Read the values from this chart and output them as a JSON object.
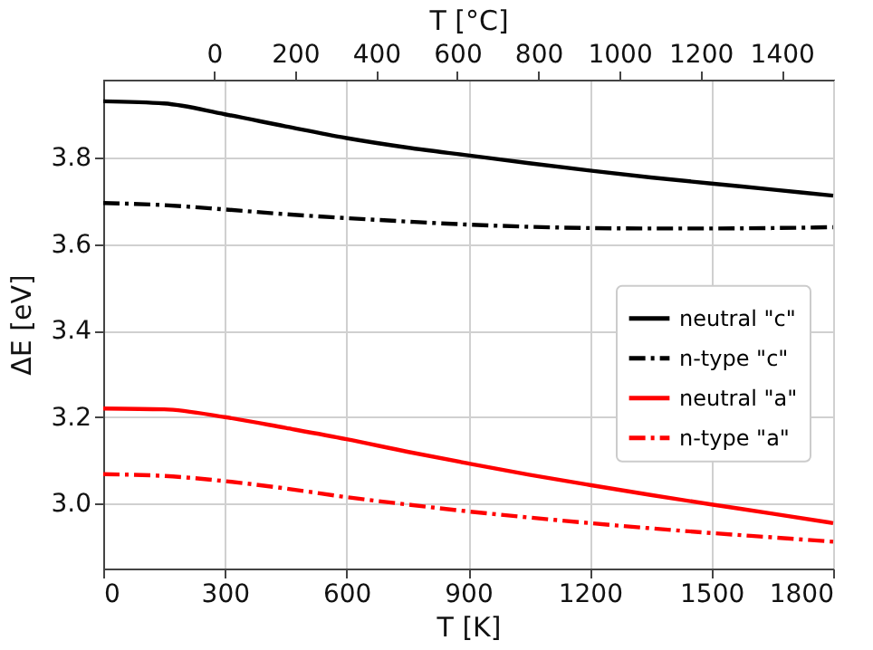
{
  "chart_data": {
    "type": "line",
    "xlabel": "T [K]",
    "ylabel": "ΔE [eV]",
    "x2label": "T [°C]",
    "xlim": [
      0,
      1800
    ],
    "xticks": [
      0,
      300,
      600,
      900,
      1200,
      1500,
      1800
    ],
    "x2lim": [
      -273.15,
      1526.85
    ],
    "x2ticks": [
      0,
      200,
      400,
      600,
      800,
      1000,
      1200,
      1400
    ],
    "ylim": [
      2.85,
      3.98
    ],
    "yticks": [
      {
        "value": 3,
        "label": "3.0"
      },
      3.2,
      3.4,
      3.6,
      3.8
    ],
    "grid": true,
    "legend": "right",
    "marker": "none",
    "x": [
      0,
      150,
      300,
      450,
      600,
      750,
      900,
      1050,
      1200,
      1350,
      1500,
      1650,
      1800
    ],
    "series": [
      {
        "name": "neutral \"c\"",
        "color": "#000000",
        "line_style": "solid",
        "values": [
          3.93,
          3.925,
          3.9,
          3.872,
          3.845,
          3.823,
          3.805,
          3.787,
          3.77,
          3.754,
          3.74,
          3.726,
          3.712
        ]
      },
      {
        "name": "n-type \"c\"",
        "color": "#000000",
        "line_style": "dashdot",
        "values": [
          3.695,
          3.69,
          3.68,
          3.669,
          3.66,
          3.652,
          3.645,
          3.64,
          3.637,
          3.636,
          3.636,
          3.637,
          3.639
        ]
      },
      {
        "name": "neutral \"a\"",
        "color": "#ff0000",
        "line_style": "solid",
        "values": [
          3.22,
          3.218,
          3.2,
          3.175,
          3.149,
          3.12,
          3.093,
          3.067,
          3.043,
          3.02,
          2.998,
          2.977,
          2.955
        ]
      },
      {
        "name": "n-type \"a\"",
        "color": "#ff0000",
        "line_style": "dashdot",
        "values": [
          3.068,
          3.064,
          3.052,
          3.035,
          3.015,
          2.998,
          2.982,
          2.968,
          2.955,
          2.943,
          2.932,
          2.922,
          2.912
        ]
      }
    ]
  }
}
